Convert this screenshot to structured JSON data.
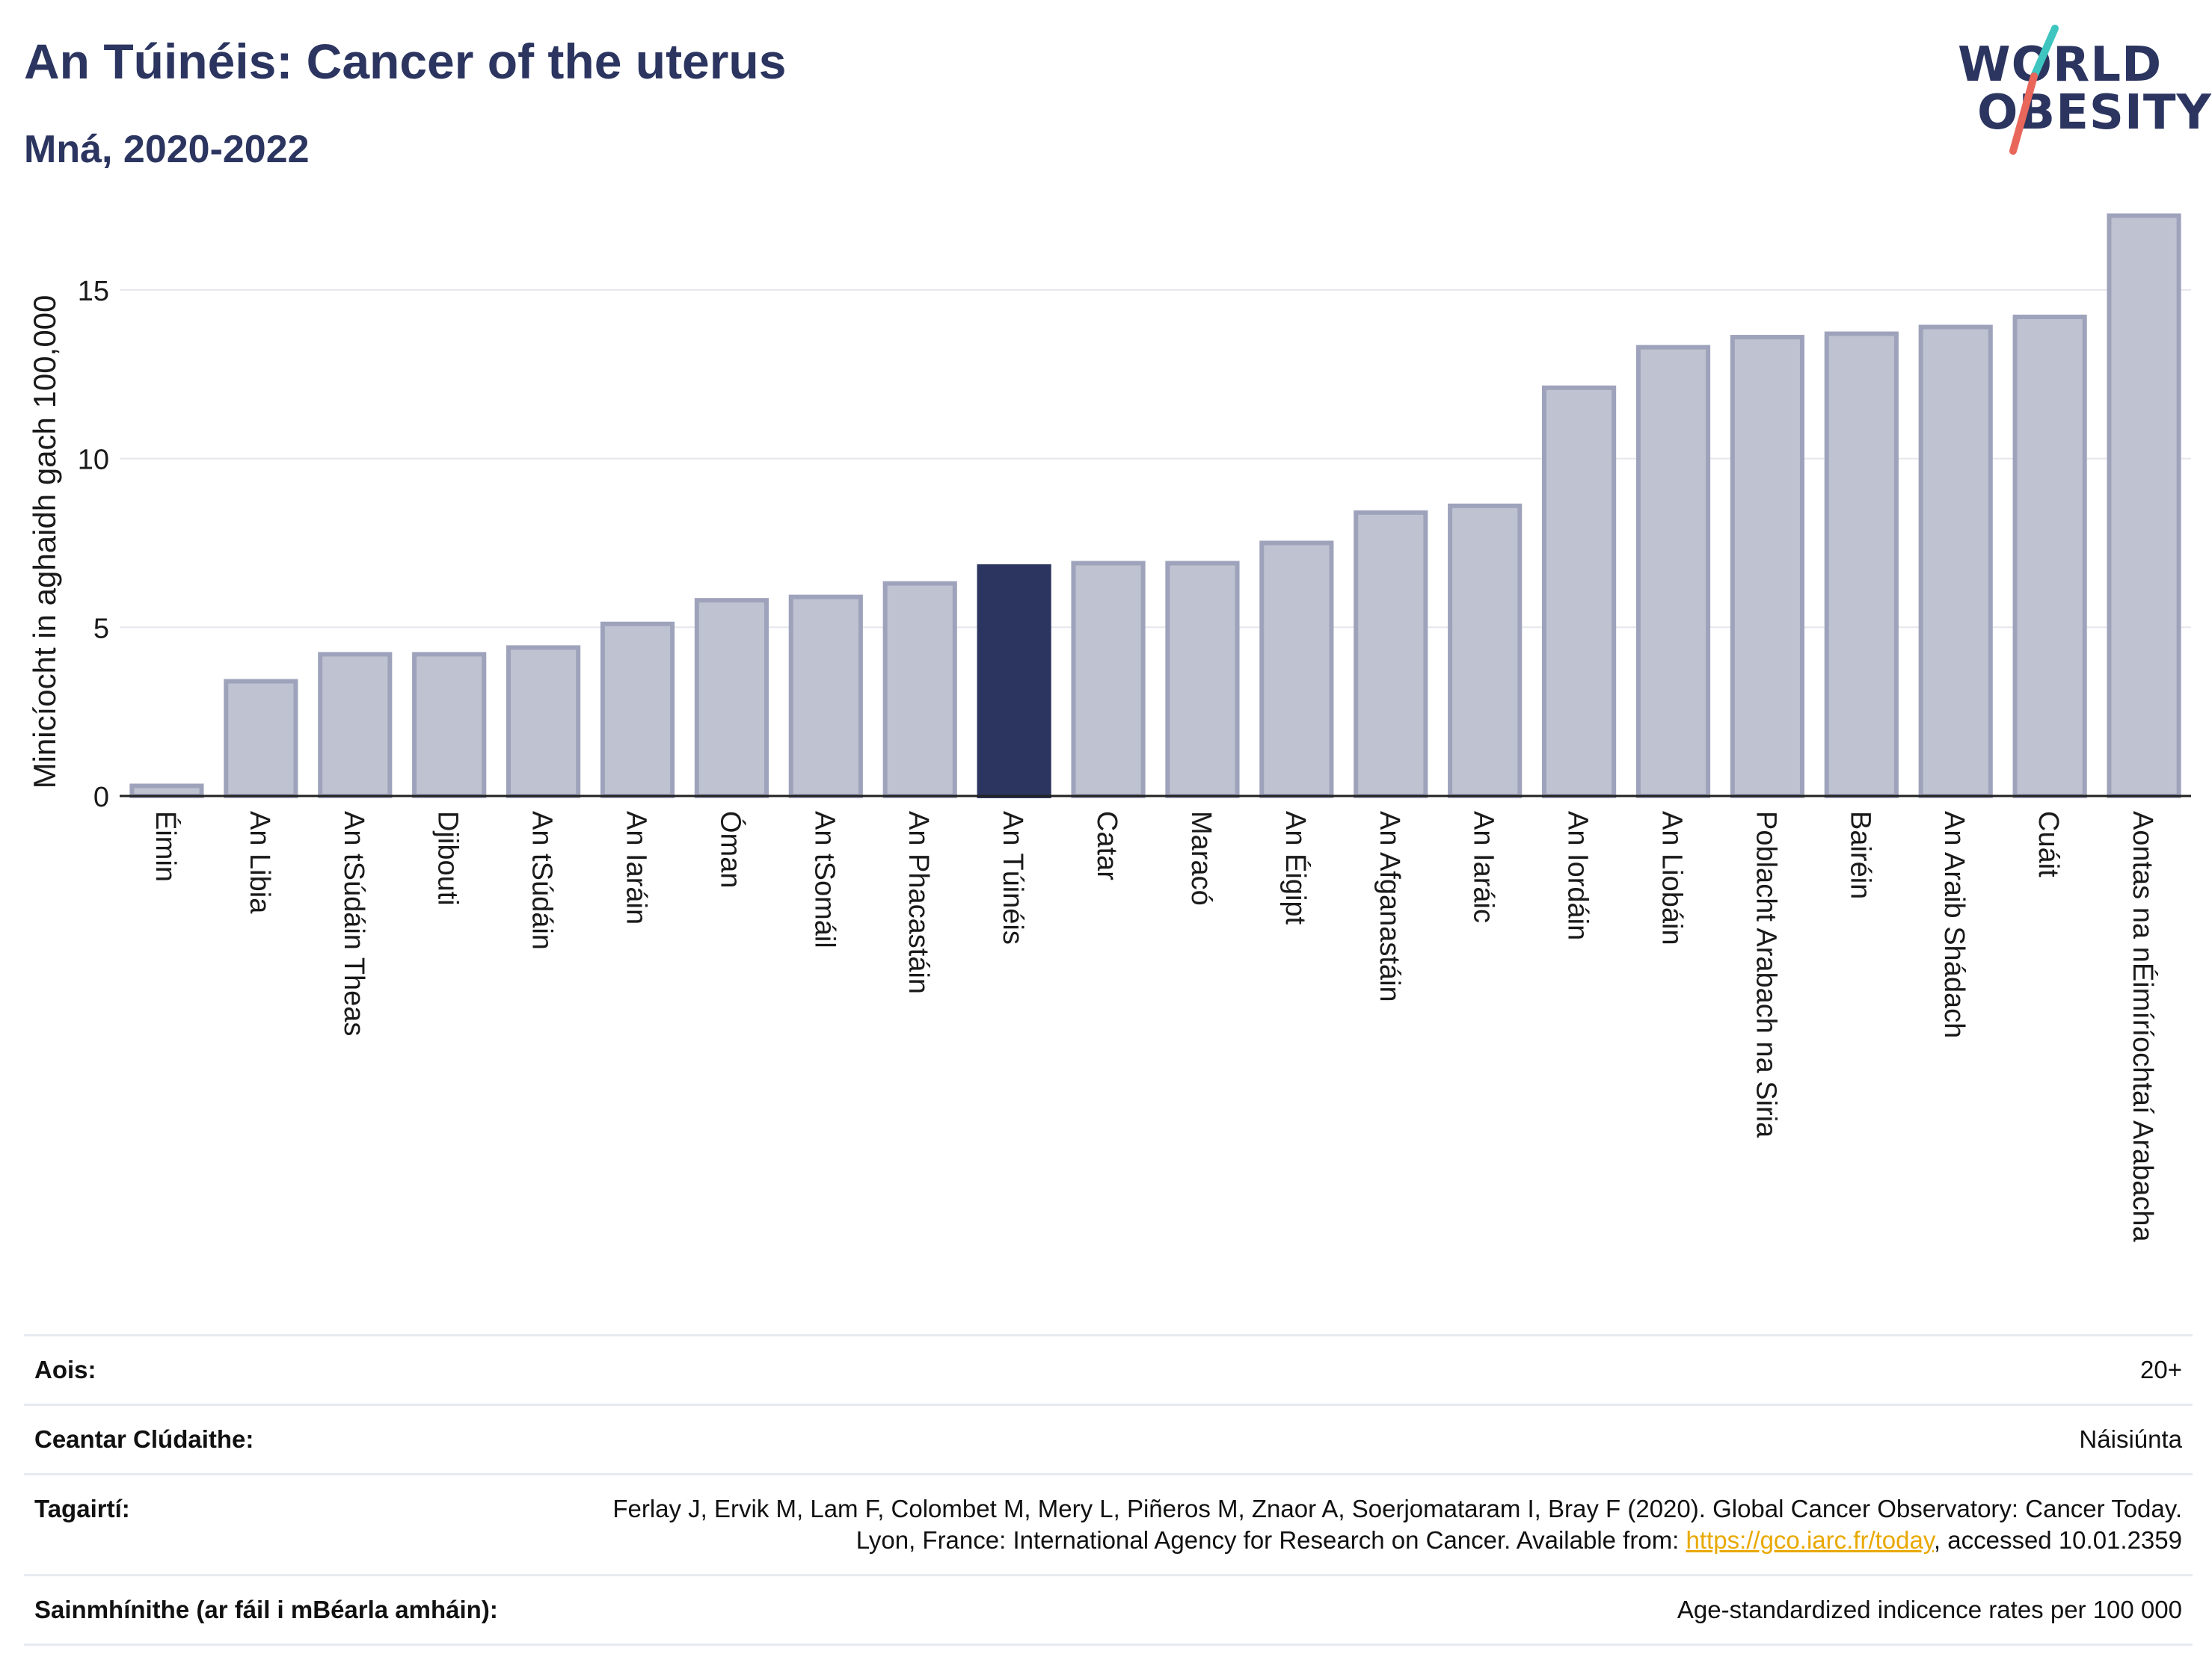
{
  "title": "An Túinéis: Cancer of the uterus",
  "subtitle": "Mná, 2020-2022",
  "logo": {
    "line1": "WORLD",
    "line2": "OBESITY"
  },
  "colors": {
    "highlight": "#2b3560",
    "bar_fill": "#bfc2d0",
    "bar_stroke": "#9ea3bb",
    "link": "#e9a800",
    "logo_teal": "#3ec5c0",
    "logo_red": "#e8665a"
  },
  "chart_data": {
    "type": "bar",
    "ylabel": "Minicíocht in aghaidh gach 100,000",
    "xlabel": "",
    "ylim": [
      0,
      17.5
    ],
    "yticks": [
      0,
      5,
      10,
      15
    ],
    "grid": true,
    "highlight_category": "An Túinéis",
    "categories": [
      "Éimin",
      "An Libia",
      "An tSúdáin Theas",
      "Djibouti",
      "An tSúdáin",
      "An Iaráin",
      "Óman",
      "An tSomáil",
      "An Phacastáin",
      "An Túinéis",
      "Catar",
      "Maracó",
      "An Éigipt",
      "An Afganastáin",
      "An Iaráic",
      "An Iordáin",
      "An Liobáin",
      "Poblacht Arabach na Siria",
      "Bairéin",
      "An Araib Shádach",
      "Cuáit",
      "Aontas na nÉimíríochtaí Arabacha"
    ],
    "values": [
      0.3,
      3.4,
      4.2,
      4.2,
      4.4,
      5.1,
      5.8,
      5.9,
      6.3,
      6.8,
      6.9,
      6.9,
      7.5,
      8.4,
      8.6,
      12.1,
      13.3,
      13.6,
      13.7,
      13.9,
      14.2,
      17.2
    ]
  },
  "info": [
    {
      "label": "Aois:",
      "value": "20+"
    },
    {
      "label": "Ceantar Clúdaithe:",
      "value": "Náisiúnta"
    },
    {
      "label": "Tagairtí:",
      "value_before": "Ferlay J, Ervik M, Lam F, Colombet M, Mery L, Piñeros M, Znaor A, Soerjomataram I, Bray F (2020). Global Cancer Observatory: Cancer Today. Lyon, France: International Agency for Research on Cancer. Available from: ",
      "link": "https://gco.iarc.fr/today",
      "value_after": ", accessed 10.01.2359"
    },
    {
      "label": "Sainmhínithe (ar fáil i mBéarla amháin):",
      "value": "Age-standardized indicence rates per 100 000"
    }
  ]
}
